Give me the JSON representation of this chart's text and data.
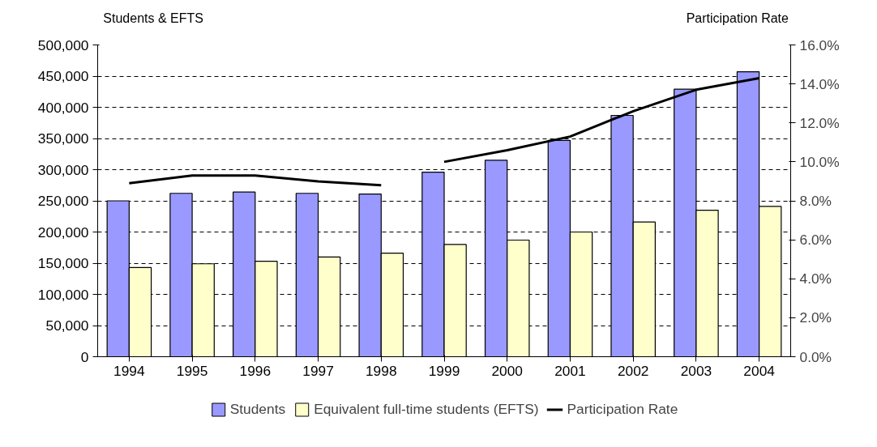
{
  "chart_data": {
    "type": "bar",
    "ylabel": "Students & EFTS",
    "y2label": "Participation Rate",
    "categories": [
      "1994",
      "1995",
      "1996",
      "1997",
      "1998",
      "1999",
      "2000",
      "2001",
      "2002",
      "2003",
      "2004"
    ],
    "series": [
      {
        "name": "Students",
        "color": "#9999ff",
        "values": [
          250000,
          262000,
          264000,
          262000,
          261000,
          296000,
          315000,
          347000,
          387000,
          429000,
          457000
        ]
      },
      {
        "name": "Equivalent full-time students (EFTS)",
        "color": "#ffffcc",
        "values": [
          143000,
          149000,
          153000,
          160000,
          166000,
          180000,
          187000,
          200000,
          216000,
          235000,
          241000
        ]
      },
      {
        "name": "Participation Rate",
        "type": "line",
        "axis": "y2",
        "color": "#000000",
        "values": [
          8.9,
          9.3,
          9.3,
          9.0,
          8.8,
          null,
          null,
          null,
          null,
          null,
          null
        ]
      },
      {
        "type": "line",
        "axis": "y2",
        "color": "#000000",
        "values": [
          null,
          null,
          null,
          null,
          null,
          10.0,
          10.6,
          11.3,
          12.6,
          13.7,
          14.3
        ]
      }
    ],
    "ylim": [
      0,
      500000
    ],
    "yticks": [
      {
        "value": 0,
        "label": "0"
      },
      {
        "value": 50000,
        "label": "50,000"
      },
      {
        "value": 100000,
        "label": "100,000"
      },
      {
        "value": 150000,
        "label": "150,000"
      },
      {
        "value": 200000,
        "label": "200,000"
      },
      {
        "value": 250000,
        "label": "250,000"
      },
      {
        "value": 300000,
        "label": "300,000"
      },
      {
        "value": 350000,
        "label": "350,000"
      },
      {
        "value": 400000,
        "label": "400,000"
      },
      {
        "value": 450000,
        "label": "450,000"
      },
      {
        "value": 500000,
        "label": "500,000"
      }
    ],
    "y2lim": [
      0,
      16
    ],
    "y2ticks": [
      {
        "value": 0,
        "label": "0.0%"
      },
      {
        "value": 2,
        "label": "2.0%"
      },
      {
        "value": 4,
        "label": "4.0%"
      },
      {
        "value": 6,
        "label": "6.0%"
      },
      {
        "value": 8,
        "label": "8.0%"
      },
      {
        "value": 10,
        "label": "10.0%"
      },
      {
        "value": 12,
        "label": "12.0%"
      },
      {
        "value": 14,
        "label": "14.0%"
      },
      {
        "value": 16,
        "label": "16.0%"
      }
    ],
    "grid": "y",
    "legend": "bottom"
  }
}
